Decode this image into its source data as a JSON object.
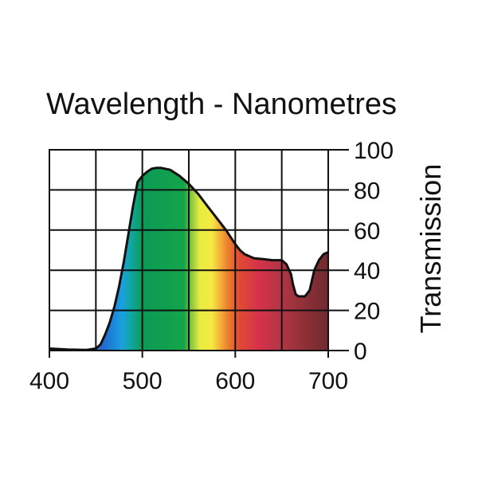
{
  "chart_data": {
    "type": "area",
    "title": "Wavelength - Nanometres",
    "xlabel": "Wavelength - Nanometres",
    "ylabel": "Transmission",
    "xlim": [
      400,
      700
    ],
    "ylim": [
      0,
      100
    ],
    "x_ticks": [
      400,
      500,
      600,
      700
    ],
    "x_tick_labels": [
      "400",
      "500",
      "600",
      "700"
    ],
    "x_grid": [
      400,
      450,
      500,
      550,
      600,
      650,
      700
    ],
    "y_ticks": [
      0,
      20,
      40,
      60,
      80,
      100
    ],
    "y_tick_labels": [
      "0",
      "20",
      "40",
      "60",
      "80",
      "100"
    ],
    "y_axis_side": "right",
    "grid": true,
    "series": [
      {
        "name": "Transmission",
        "x": [
          400,
          420,
          440,
          450,
          455,
          460,
          465,
          470,
          475,
          480,
          485,
          490,
          495,
          500,
          505,
          510,
          515,
          520,
          530,
          540,
          550,
          560,
          570,
          580,
          590,
          600,
          605,
          610,
          620,
          630,
          640,
          650,
          655,
          660,
          662,
          665,
          668,
          670,
          675,
          680,
          685,
          690,
          695,
          700
        ],
        "y": [
          1,
          0.5,
          0.3,
          1,
          3,
          8,
          14,
          22,
          32,
          44,
          58,
          72,
          84,
          87,
          89,
          90.5,
          91,
          91,
          90,
          87,
          83,
          78,
          72,
          66,
          60,
          53,
          50,
          48,
          46,
          45.5,
          45,
          45,
          43,
          38,
          33,
          28,
          27,
          27,
          27,
          30,
          40,
          45,
          48,
          49
        ]
      }
    ],
    "fill_spectrum": [
      {
        "wavelength": 400,
        "color": "#7b3a9e"
      },
      {
        "wavelength": 440,
        "color": "#3a4fb5"
      },
      {
        "wavelength": 460,
        "color": "#1e6fd0"
      },
      {
        "wavelength": 478,
        "color": "#1aa0e0"
      },
      {
        "wavelength": 488,
        "color": "#10a7a0"
      },
      {
        "wavelength": 500,
        "color": "#0c9a55"
      },
      {
        "wavelength": 545,
        "color": "#14a54a"
      },
      {
        "wavelength": 553,
        "color": "#8cc83f"
      },
      {
        "wavelength": 562,
        "color": "#e8ec40"
      },
      {
        "wavelength": 575,
        "color": "#f5e842"
      },
      {
        "wavelength": 583,
        "color": "#f3b53a"
      },
      {
        "wavelength": 592,
        "color": "#ec7f2e"
      },
      {
        "wavelength": 605,
        "color": "#e04a35"
      },
      {
        "wavelength": 625,
        "color": "#d6324a"
      },
      {
        "wavelength": 650,
        "color": "#b23545"
      },
      {
        "wavelength": 675,
        "color": "#8e2f36"
      },
      {
        "wavelength": 700,
        "color": "#6f2a30"
      }
    ]
  }
}
